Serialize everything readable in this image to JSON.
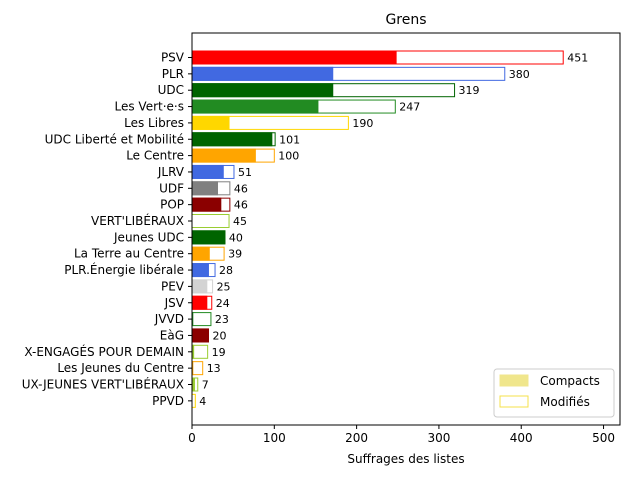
{
  "chart_data": {
    "type": "bar",
    "orientation": "horizontal",
    "stacked": true,
    "title": "Grens",
    "xlabel": "Suffrages des listes",
    "ylabel": "",
    "xlim": [
      0,
      520
    ],
    "xticks": [
      0,
      100,
      200,
      300,
      400,
      500
    ],
    "grid": false,
    "legend": {
      "placement": "bottom-right",
      "entries": [
        {
          "label": "Compacts",
          "fill": "#f0e68c",
          "edge": "#f0e68c"
        },
        {
          "label": "Modifiés",
          "fill": "#ffffff",
          "edge": "#f5e04a"
        }
      ]
    },
    "categories": [
      "PSV",
      "PLR",
      "UDC",
      "Les Vert·e·s",
      "Les Libres",
      "UDC Liberté et Mobilité",
      "Le Centre",
      "JLRV",
      "UDF",
      "POP",
      "VERT'LIBÉRAUX",
      "Jeunes UDC",
      "La Terre au Centre",
      "PLR.Énergie libérale",
      "PEV",
      "JSV",
      "JVVD",
      "EàG",
      "X-ENGAGÉS POUR DEMAIN",
      "Les Jeunes du Centre",
      "UX-JEUNES VERT'LIBÉRAUX",
      "PPVD"
    ],
    "series": [
      {
        "name": "Compacts",
        "values": [
          248,
          171,
          171,
          153,
          45,
          97,
          77,
          38,
          31,
          35,
          0,
          40,
          21,
          20,
          18,
          18,
          1,
          20,
          2,
          1,
          3,
          0
        ]
      },
      {
        "name": "Modifiés",
        "values": [
          203,
          209,
          148,
          94,
          145,
          4,
          23,
          13,
          15,
          11,
          45,
          0,
          18,
          8,
          7,
          6,
          22,
          0,
          17,
          12,
          4,
          4
        ]
      }
    ],
    "totals": [
      451,
      380,
      319,
      247,
      190,
      101,
      100,
      51,
      46,
      46,
      45,
      40,
      39,
      28,
      25,
      24,
      23,
      20,
      19,
      13,
      7,
      4
    ],
    "colors": [
      "#ff0000",
      "#4169e1",
      "#006400",
      "#228b22",
      "#ffd700",
      "#006400",
      "#ffa500",
      "#4169e1",
      "#808080",
      "#8b0000",
      "#9acd32",
      "#006400",
      "#ffa500",
      "#4169e1",
      "#d3d3d3",
      "#ff0000",
      "#228b22",
      "#8b0000",
      "#9acd32",
      "#ffa500",
      "#9acd32",
      "#ffd700"
    ]
  }
}
